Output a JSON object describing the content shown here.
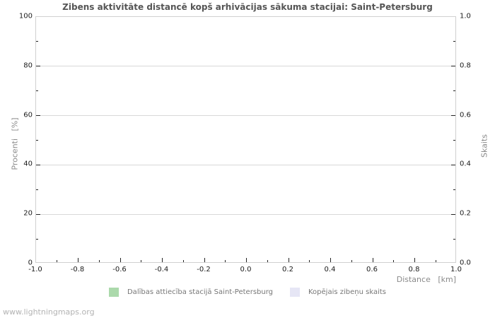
{
  "title": "Zibens aktivitāte distancē kopš arhivācijas sākuma stacijai: Saint-Petersburg",
  "footer": "www.lightningmaps.org",
  "axes": {
    "left": {
      "label": "Procenti   [%]",
      "ticks": [
        "0",
        "20",
        "40",
        "60",
        "80",
        "100"
      ],
      "minor_per_major": 1
    },
    "right": {
      "label": "Skaits",
      "ticks": [
        "0.0",
        "0.2",
        "0.4",
        "0.6",
        "0.8",
        "1.0"
      ],
      "minor_per_major": 1
    },
    "x": {
      "label": "Distance   [km]",
      "ticks": [
        "-1.0",
        "-0.8",
        "-0.6",
        "-0.4",
        "-0.2",
        "0.0",
        "0.2",
        "0.4",
        "0.6",
        "0.8",
        "1.0"
      ],
      "minor_per_major": 1
    }
  },
  "legend": [
    {
      "label": "Dalības attiecība stacijā Saint-Petersburg",
      "color": "#abd9ab"
    },
    {
      "label": "Kopējais zibeņu skaits",
      "color": "#e6e6f5"
    }
  ],
  "colors": {
    "frame": "#d0d0d0",
    "gridline": "#d8d8d8",
    "tick": "#222222",
    "title_text": "#555555",
    "axis_title_text": "#8a8a8a",
    "footer_text": "#b3b3b3"
  },
  "chart_data": {
    "type": "bar",
    "title": "Zibens aktivitāte distancē kopš arhivācijas sākuma stacijai: Saint-Petersburg",
    "xlabel": "Distance [km]",
    "ylabel_left": "Procenti [%]",
    "ylabel_right": "Skaits",
    "xlim": [
      -1.0,
      1.0
    ],
    "ylim_left": [
      0,
      100
    ],
    "ylim_right": [
      0.0,
      1.0
    ],
    "grid": "horizontal-major-only",
    "legend_position": "bottom-center",
    "series": [
      {
        "name": "Dalības attiecība stacijā Saint-Petersburg",
        "axis": "left",
        "color": "#abd9ab",
        "x": [],
        "values": []
      },
      {
        "name": "Kopējais zibeņu skaits",
        "axis": "right",
        "color": "#e6e6f5",
        "x": [],
        "values": []
      }
    ]
  }
}
